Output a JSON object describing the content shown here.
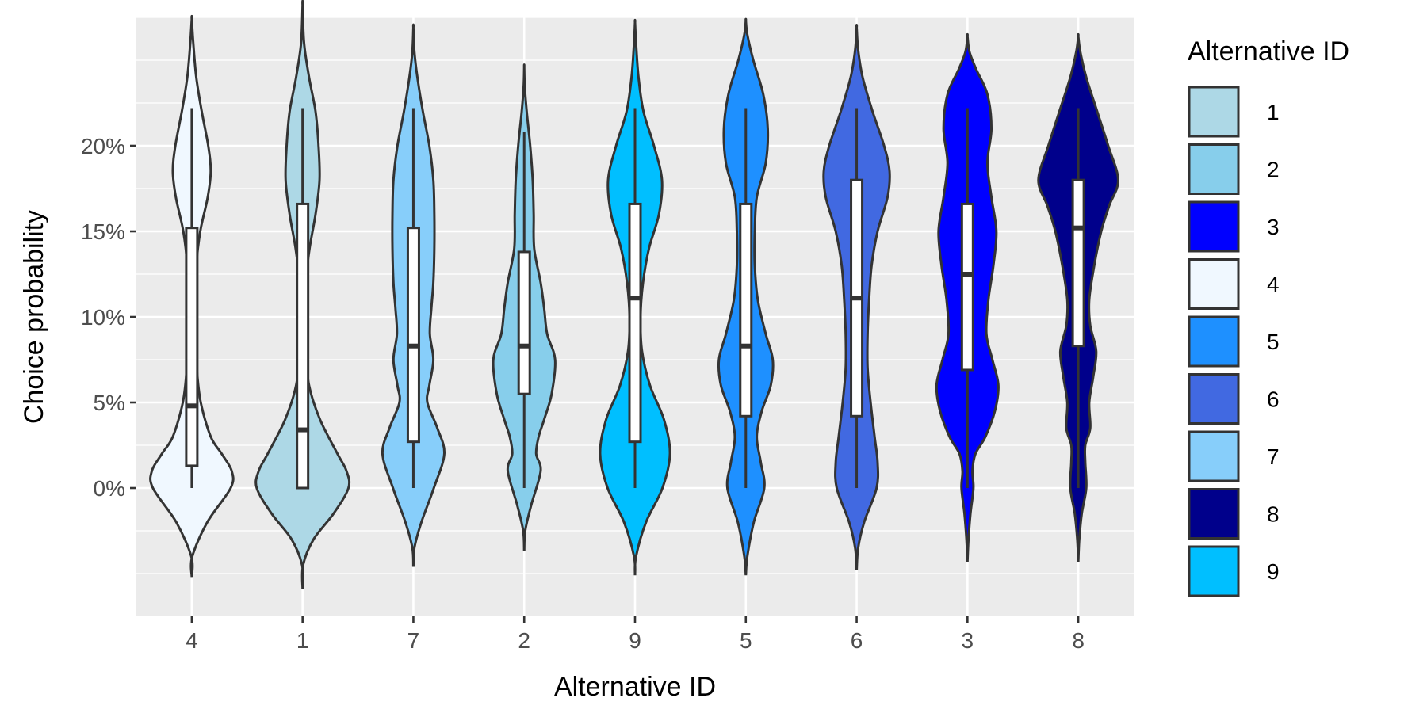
{
  "chart_data": {
    "type": "violin",
    "title": "",
    "xlabel": "Alternative ID",
    "ylabel": "Choice probability",
    "categories": [
      "4",
      "1",
      "7",
      "2",
      "9",
      "5",
      "6",
      "3",
      "8"
    ],
    "y_ticks": [
      0,
      0.05,
      0.1,
      0.15,
      0.2
    ],
    "y_tick_labels": [
      "0%",
      "5%",
      "10%",
      "15%",
      "20%"
    ],
    "ylim": [
      -0.075,
      0.275
    ],
    "grid": true,
    "panel_background": "#ebebeb",
    "legend": {
      "title": "Alternative ID",
      "position": "right",
      "entries": [
        {
          "label": "1",
          "color": "#add8e6"
        },
        {
          "label": "2",
          "color": "#87ceeb"
        },
        {
          "label": "3",
          "color": "#0000ff"
        },
        {
          "label": "4",
          "color": "#f0f8ff"
        },
        {
          "label": "5",
          "color": "#1e90ff"
        },
        {
          "label": "6",
          "color": "#4169e1"
        },
        {
          "label": "7",
          "color": "#87cefa"
        },
        {
          "label": "8",
          "color": "#00008b"
        },
        {
          "label": "9",
          "color": "#00bfff"
        }
      ]
    },
    "series": [
      {
        "id": "4",
        "color": "#f0f8ff",
        "box": {
          "min": 0.0,
          "q1": 0.013,
          "median": 0.048,
          "q3": 0.152,
          "max": 0.222
        },
        "violin": {
          "y": [
            -0.052,
            -0.04,
            -0.02,
            0.0,
            0.01,
            0.02,
            0.03,
            0.05,
            0.07,
            0.09,
            0.11,
            0.13,
            0.15,
            0.17,
            0.185,
            0.2,
            0.22,
            0.24,
            0.26,
            0.274
          ],
          "hw": [
            0.0,
            0.01,
            0.31,
            0.78,
            0.8,
            0.6,
            0.38,
            0.18,
            0.1,
            0.08,
            0.07,
            0.09,
            0.17,
            0.32,
            0.38,
            0.33,
            0.2,
            0.09,
            0.03,
            0.0
          ]
        }
      },
      {
        "id": "1",
        "color": "#add8e6",
        "box": {
          "min": 0.0,
          "q1": 0.0,
          "median": 0.034,
          "q3": 0.166,
          "max": 0.222
        },
        "violin": {
          "y": [
            -0.059,
            -0.045,
            -0.03,
            -0.015,
            0.0,
            0.01,
            0.02,
            0.04,
            0.06,
            0.08,
            0.1,
            0.12,
            0.14,
            0.16,
            0.18,
            0.2,
            0.22,
            0.24,
            0.26,
            0.282
          ],
          "hw": [
            0.0,
            0.01,
            0.22,
            0.62,
            0.92,
            0.88,
            0.7,
            0.35,
            0.13,
            0.06,
            0.04,
            0.06,
            0.14,
            0.26,
            0.34,
            0.32,
            0.26,
            0.13,
            0.03,
            0.0
          ]
        }
      },
      {
        "id": "7",
        "color": "#87cefa",
        "box": {
          "min": 0.0,
          "q1": 0.027,
          "median": 0.083,
          "q3": 0.152,
          "max": 0.222
        },
        "violin": {
          "y": [
            -0.046,
            -0.035,
            -0.02,
            0.0,
            0.02,
            0.035,
            0.05,
            0.06,
            0.075,
            0.09,
            0.105,
            0.12,
            0.14,
            0.16,
            0.18,
            0.2,
            0.22,
            0.24,
            0.255,
            0.269
          ],
          "hw": [
            0.0,
            0.02,
            0.16,
            0.41,
            0.62,
            0.48,
            0.28,
            0.32,
            0.4,
            0.33,
            0.36,
            0.4,
            0.42,
            0.42,
            0.4,
            0.32,
            0.19,
            0.08,
            0.02,
            0.0
          ]
        }
      },
      {
        "id": "2",
        "color": "#87ceeb",
        "box": {
          "min": 0.0,
          "q1": 0.055,
          "median": 0.083,
          "q3": 0.138,
          "max": 0.208
        },
        "violin": {
          "y": [
            -0.037,
            -0.025,
            -0.01,
            0.01,
            0.02,
            0.03,
            0.04,
            0.055,
            0.075,
            0.09,
            0.105,
            0.12,
            0.14,
            0.16,
            0.18,
            0.2,
            0.22,
            0.235,
            0.246
          ],
          "hw": [
            0.0,
            0.02,
            0.14,
            0.33,
            0.24,
            0.29,
            0.4,
            0.55,
            0.62,
            0.46,
            0.4,
            0.33,
            0.2,
            0.19,
            0.17,
            0.12,
            0.05,
            0.01,
            0.0
          ]
        }
      },
      {
        "id": "9",
        "color": "#00bfff",
        "box": {
          "min": 0.0,
          "q1": 0.027,
          "median": 0.111,
          "q3": 0.166,
          "max": 0.222
        },
        "violin": {
          "y": [
            -0.051,
            -0.04,
            -0.02,
            0.0,
            0.02,
            0.04,
            0.06,
            0.08,
            0.1,
            0.12,
            0.14,
            0.16,
            0.18,
            0.2,
            0.22,
            0.24,
            0.26,
            0.272
          ],
          "hw": [
            0.0,
            0.02,
            0.22,
            0.55,
            0.7,
            0.58,
            0.3,
            0.14,
            0.11,
            0.16,
            0.28,
            0.48,
            0.54,
            0.38,
            0.17,
            0.07,
            0.02,
            0.0
          ]
        }
      },
      {
        "id": "5",
        "color": "#1e90ff",
        "box": {
          "min": 0.0,
          "q1": 0.042,
          "median": 0.083,
          "q3": 0.166,
          "max": 0.222
        },
        "violin": {
          "y": [
            -0.051,
            -0.04,
            -0.02,
            0.0,
            0.015,
            0.03,
            0.045,
            0.06,
            0.075,
            0.09,
            0.11,
            0.13,
            0.15,
            0.17,
            0.19,
            0.21,
            0.23,
            0.25,
            0.265,
            0.273
          ],
          "hw": [
            0.0,
            0.03,
            0.16,
            0.37,
            0.3,
            0.22,
            0.32,
            0.5,
            0.54,
            0.4,
            0.24,
            0.18,
            0.18,
            0.22,
            0.4,
            0.44,
            0.35,
            0.15,
            0.03,
            0.0
          ]
        }
      },
      {
        "id": "6",
        "color": "#4169e1",
        "box": {
          "min": 0.0,
          "q1": 0.042,
          "median": 0.111,
          "q3": 0.18,
          "max": 0.222
        },
        "violin": {
          "y": [
            -0.048,
            -0.035,
            -0.02,
            0.0,
            0.015,
            0.03,
            0.05,
            0.07,
            0.09,
            0.11,
            0.13,
            0.15,
            0.17,
            0.185,
            0.2,
            0.22,
            0.24,
            0.256,
            0.269
          ],
          "hw": [
            0.0,
            0.03,
            0.15,
            0.4,
            0.42,
            0.36,
            0.28,
            0.22,
            0.22,
            0.25,
            0.3,
            0.42,
            0.62,
            0.66,
            0.55,
            0.32,
            0.12,
            0.03,
            0.0
          ]
        }
      },
      {
        "id": "3",
        "color": "#0000ff",
        "box": {
          "min": 0.0,
          "q1": 0.069,
          "median": 0.125,
          "q3": 0.166,
          "max": 0.222
        },
        "violin": {
          "y": [
            -0.043,
            -0.03,
            -0.015,
            0.0,
            0.01,
            0.02,
            0.03,
            0.045,
            0.06,
            0.075,
            0.09,
            0.11,
            0.13,
            0.15,
            0.17,
            0.19,
            0.21,
            0.23,
            0.245,
            0.255,
            0.264
          ],
          "hw": [
            0.0,
            0.02,
            0.06,
            0.12,
            0.1,
            0.16,
            0.36,
            0.55,
            0.62,
            0.5,
            0.38,
            0.42,
            0.52,
            0.58,
            0.48,
            0.4,
            0.48,
            0.4,
            0.17,
            0.04,
            0.0
          ]
        }
      },
      {
        "id": "8",
        "color": "#00008b",
        "box": {
          "min": 0.0,
          "q1": 0.083,
          "median": 0.152,
          "q3": 0.18,
          "max": 0.222
        },
        "violin": {
          "y": [
            -0.043,
            -0.03,
            -0.015,
            0.0,
            0.015,
            0.025,
            0.035,
            0.05,
            0.065,
            0.08,
            0.095,
            0.11,
            0.13,
            0.15,
            0.165,
            0.18,
            0.2,
            0.22,
            0.24,
            0.255,
            0.264
          ],
          "hw": [
            0.0,
            0.02,
            0.07,
            0.16,
            0.14,
            0.14,
            0.24,
            0.22,
            0.3,
            0.36,
            0.24,
            0.22,
            0.32,
            0.46,
            0.62,
            0.8,
            0.6,
            0.38,
            0.16,
            0.04,
            0.0
          ]
        }
      }
    ]
  }
}
